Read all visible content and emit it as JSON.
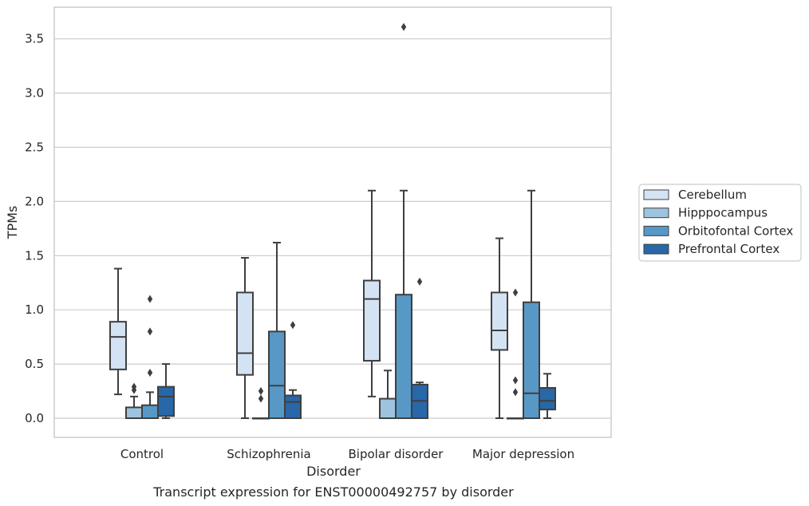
{
  "chart_data": {
    "type": "box",
    "title": "",
    "caption": "Transcript expression for ENST00000492757 by disorder",
    "xlabel": "Disorder",
    "ylabel": "TPMs",
    "ylim": [
      -0.17,
      3.76
    ],
    "yticks": [
      "0.0",
      "0.5",
      "1.0",
      "1.5",
      "2.0",
      "2.5",
      "3.0",
      "3.5"
    ],
    "grid": "horizontal",
    "legend_position": "right",
    "categories": [
      "Control",
      "Schizophrenia",
      "Bipolar disorder",
      "Major depression"
    ],
    "series": [
      {
        "name": "Cerebellum",
        "color": "#d4e3f3",
        "boxes": [
          {
            "whislo": 0.22,
            "q1": 0.45,
            "med": 0.75,
            "q3": 0.89,
            "whishi": 1.38,
            "fliers": []
          },
          {
            "whislo": 0.0,
            "q1": 0.4,
            "med": 0.6,
            "q3": 1.16,
            "whishi": 1.48,
            "fliers": []
          },
          {
            "whislo": 0.2,
            "q1": 0.53,
            "med": 1.1,
            "q3": 1.27,
            "whishi": 2.1,
            "fliers": []
          },
          {
            "whislo": 0.0,
            "q1": 0.63,
            "med": 0.81,
            "q3": 1.16,
            "whishi": 1.66,
            "fliers": []
          }
        ]
      },
      {
        "name": "Hipppocampus",
        "color": "#9dc3df",
        "boxes": [
          {
            "whislo": 0.0,
            "q1": 0.0,
            "med": 0.0,
            "q3": 0.1,
            "whishi": 0.2,
            "fliers": [
              0.26,
              0.29
            ]
          },
          {
            "whislo": 0.0,
            "q1": 0.0,
            "med": 0.0,
            "q3": 0.0,
            "whishi": 0.0,
            "fliers": [
              0.18,
              0.25
            ]
          },
          {
            "whislo": 0.0,
            "q1": 0.0,
            "med": 0.0,
            "q3": 0.18,
            "whishi": 0.44,
            "fliers": []
          },
          {
            "whislo": 0.0,
            "q1": 0.0,
            "med": 0.0,
            "q3": 0.0,
            "whishi": 0.0,
            "fliers": [
              0.24,
              0.35,
              1.16
            ]
          }
        ]
      },
      {
        "name": "Orbitofontal Cortex",
        "color": "#5798c7",
        "boxes": [
          {
            "whislo": 0.0,
            "q1": 0.0,
            "med": 0.0,
            "q3": 0.12,
            "whishi": 0.24,
            "fliers": [
              0.42,
              0.8,
              1.1
            ]
          },
          {
            "whislo": 0.0,
            "q1": 0.0,
            "med": 0.3,
            "q3": 0.8,
            "whishi": 1.62,
            "fliers": []
          },
          {
            "whislo": 0.0,
            "q1": 0.0,
            "med": 0.0,
            "q3": 1.14,
            "whishi": 2.1,
            "fliers": [
              3.61
            ]
          },
          {
            "whislo": 0.0,
            "q1": 0.0,
            "med": 0.23,
            "q3": 1.07,
            "whishi": 2.1,
            "fliers": []
          }
        ]
      },
      {
        "name": "Prefrontal Cortex",
        "color": "#2867a8",
        "boxes": [
          {
            "whislo": 0.0,
            "q1": 0.02,
            "med": 0.2,
            "q3": 0.29,
            "whishi": 0.5,
            "fliers": []
          },
          {
            "whislo": 0.0,
            "q1": 0.0,
            "med": 0.15,
            "q3": 0.21,
            "whishi": 0.26,
            "fliers": [
              0.86
            ]
          },
          {
            "whislo": 0.0,
            "q1": 0.0,
            "med": 0.16,
            "q3": 0.31,
            "whishi": 0.33,
            "fliers": [
              1.26
            ]
          },
          {
            "whislo": 0.0,
            "q1": 0.08,
            "med": 0.16,
            "q3": 0.28,
            "whishi": 0.41,
            "fliers": []
          }
        ]
      }
    ]
  }
}
